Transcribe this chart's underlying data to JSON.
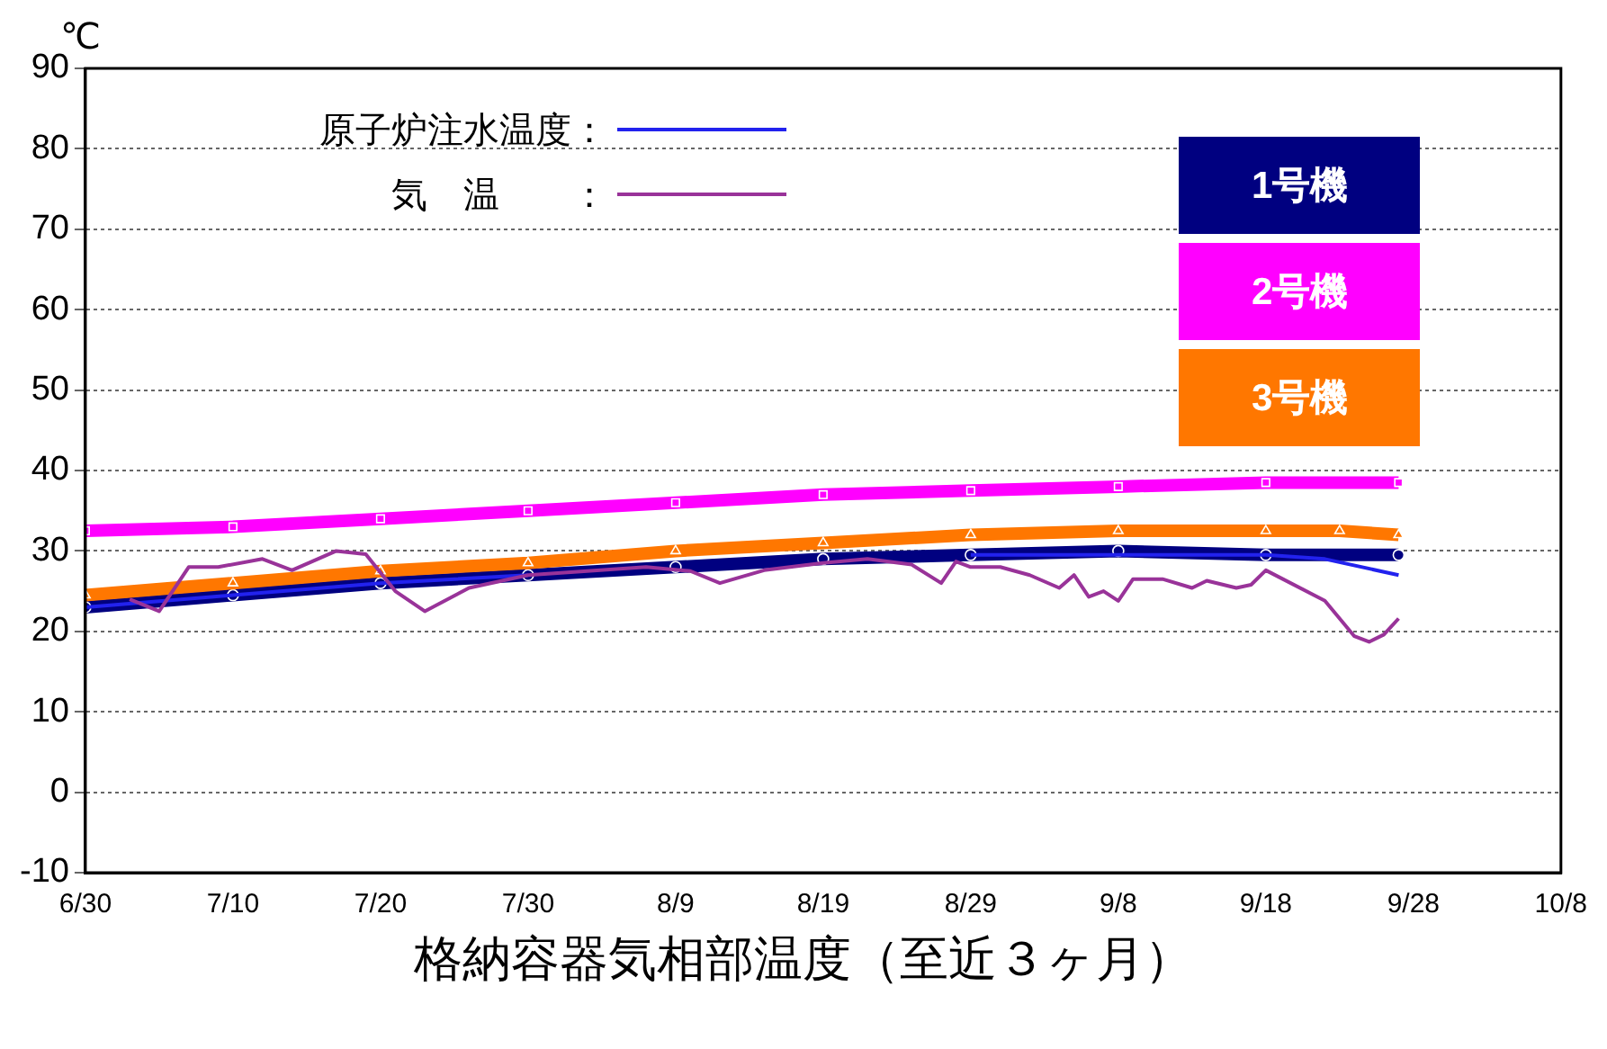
{
  "chart_data": {
    "type": "line",
    "title": "格納容器気相部温度（至近３ヶ月）",
    "ylabel": "℃",
    "xlim": [
      "--06-30",
      "--10-08"
    ],
    "xticks": [
      {
        "value": "--06-30",
        "label": "6/30"
      },
      {
        "value": "--07-10",
        "label": "7/10"
      },
      {
        "value": "--07-20",
        "label": "7/20"
      },
      {
        "value": "--07-30",
        "label": "7/30"
      },
      {
        "value": "--08-09",
        "label": "8/9"
      },
      {
        "value": "--08-19",
        "label": "8/19"
      },
      {
        "value": "--08-29",
        "label": "8/29"
      },
      {
        "value": "--09-08",
        "label": "9/8"
      },
      {
        "value": "--09-18",
        "label": "9/18"
      },
      {
        "value": "--09-28",
        "label": "9/28"
      },
      {
        "value": "--10-08",
        "label": "10/8"
      }
    ],
    "ylim": [
      -10,
      90
    ],
    "yticks": [
      -10,
      0,
      10,
      20,
      30,
      40,
      50,
      60,
      70,
      80,
      90
    ],
    "grid": "y",
    "legend": "top",
    "line_style": "solid",
    "series": [
      {
        "name": "1号機",
        "color": "#000080",
        "marker": "circle",
        "x": [
          "--06-30",
          "--07-10",
          "--07-20",
          "--07-30",
          "--08-09",
          "--08-19",
          "--08-29",
          "--09-08",
          "--09-18",
          "--09-27"
        ],
        "values": [
          23,
          24.5,
          26,
          27,
          28,
          29,
          29.5,
          30,
          29.5,
          29.5
        ]
      },
      {
        "name": "2号機",
        "color": "#ff00ff",
        "marker": "square",
        "x": [
          "--06-30",
          "--07-10",
          "--07-20",
          "--07-30",
          "--08-09",
          "--08-19",
          "--08-29",
          "--09-08",
          "--09-18",
          "--09-27"
        ],
        "values": [
          32.5,
          33,
          34,
          35,
          36,
          37,
          37.5,
          38,
          38.5,
          38.5
        ]
      },
      {
        "name": "3号機",
        "color": "#ff7700",
        "marker": "triangle",
        "x": [
          "--06-30",
          "--07-10",
          "--07-20",
          "--07-30",
          "--08-09",
          "--08-19",
          "--08-29",
          "--09-08",
          "--09-18",
          "--09-23",
          "--09-27"
        ],
        "values": [
          24.5,
          26,
          27.5,
          28.5,
          30,
          31,
          32,
          32.5,
          32.5,
          32.5,
          32
        ]
      },
      {
        "name": "原子炉注水温度：",
        "color": "#2222ee",
        "marker": "none",
        "x": [
          "--06-30",
          "--07-10",
          "--07-20",
          "--07-30",
          "--08-09",
          "--08-19",
          "--08-29",
          "--09-08",
          "--09-18",
          "--09-22",
          "--09-27"
        ],
        "values": [
          23,
          24.5,
          26,
          27,
          null,
          null,
          29.5,
          29.5,
          29.5,
          29,
          27
        ]
      },
      {
        "name": "気　温　　：",
        "color": "#993399",
        "marker": "none",
        "x": [
          "--07-03",
          "--07-05",
          "--07-07",
          "--07-09",
          "--07-12",
          "--07-14",
          "--07-17",
          "--07-19",
          "--07-21",
          "--07-23",
          "--07-26",
          "--07-30",
          "--08-03",
          "--08-07",
          "--08-10",
          "--08-12",
          "--08-15",
          "--08-19",
          "--08-22",
          "--08-25",
          "--08-27",
          "--08-28",
          "--08-29",
          "--08-31",
          "--09-02",
          "--09-04",
          "--09-05",
          "--09-06",
          "--09-07",
          "--09-08",
          "--09-09",
          "--09-11",
          "--09-13",
          "--09-14",
          "--09-16",
          "--09-17",
          "--09-18",
          "--09-22",
          "--09-24",
          "--09-25",
          "--09-26",
          "--09-27"
        ],
        "values": [
          24,
          22.5,
          28,
          28,
          29,
          27.6,
          30,
          29.6,
          25,
          22.5,
          25.4,
          27,
          27.5,
          28,
          27.5,
          26,
          27.6,
          28.5,
          29,
          28.3,
          26,
          28.7,
          28,
          28,
          27,
          25.4,
          27,
          24.3,
          25,
          23.8,
          26.5,
          26.5,
          25.4,
          26.3,
          25.4,
          25.8,
          27.6,
          23.8,
          19.4,
          18.7,
          19.6,
          21.6
        ]
      }
    ]
  }
}
